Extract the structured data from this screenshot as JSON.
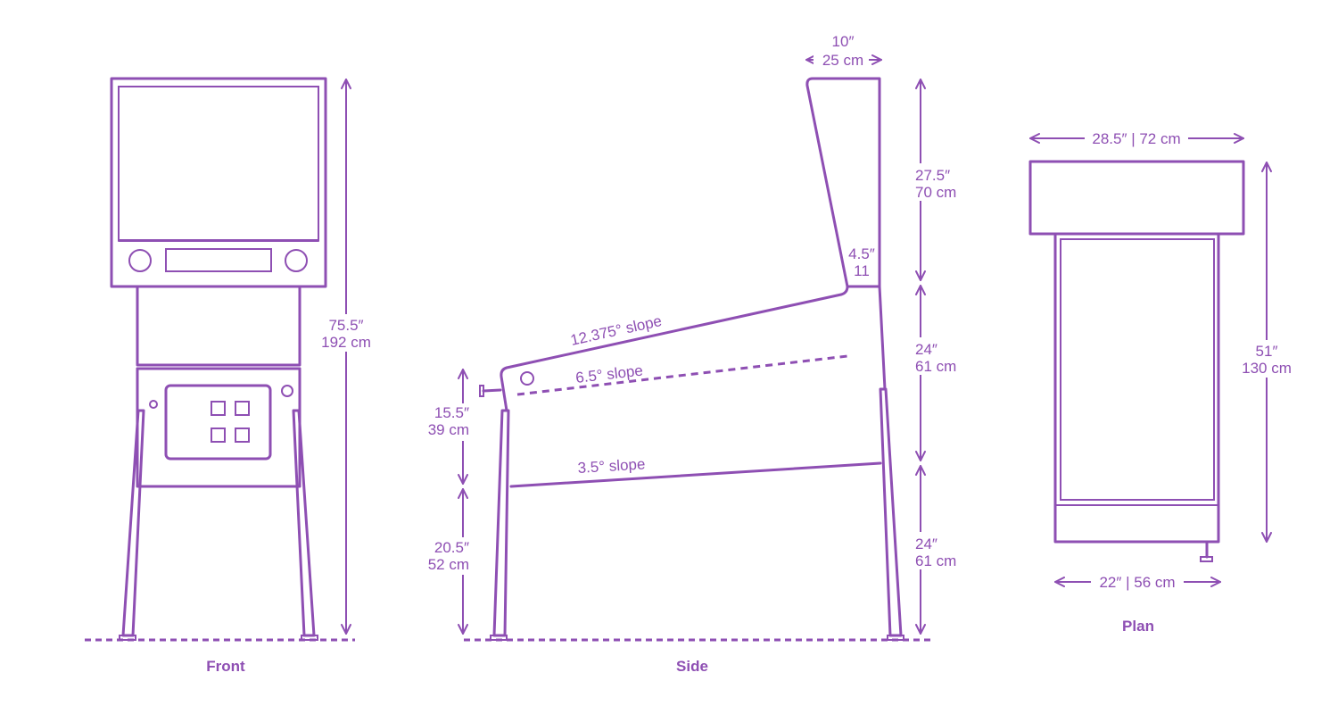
{
  "colors": {
    "stroke": "#8e4fb3"
  },
  "views": {
    "front": {
      "caption": "Front",
      "height_in": "75.5″",
      "height_cm": "192 cm"
    },
    "side": {
      "caption": "Side",
      "head_depth_in": "10″",
      "head_depth_cm": "25 cm",
      "head_height_in": "27.5″",
      "head_height_cm": "70 cm",
      "head_base_in": "4.5″",
      "head_base_cm": "11",
      "cabinet_in": "24″",
      "cabinet_cm": "61 cm",
      "legs_in": "24″",
      "legs_cm": "61 cm",
      "front_cabinet_in": "15.5″",
      "front_cabinet_cm": "39 cm",
      "front_legs_in": "20.5″",
      "front_legs_cm": "52 cm",
      "top_slope": "12.375° slope",
      "playfield_slope": "6.5° slope",
      "bottom_slope": "3.5° slope"
    },
    "plan": {
      "caption": "Plan",
      "head_width": "28.5″ | 72 cm",
      "cabinet_width": "22″ | 56 cm",
      "depth_in": "51″",
      "depth_cm": "130 cm"
    }
  }
}
